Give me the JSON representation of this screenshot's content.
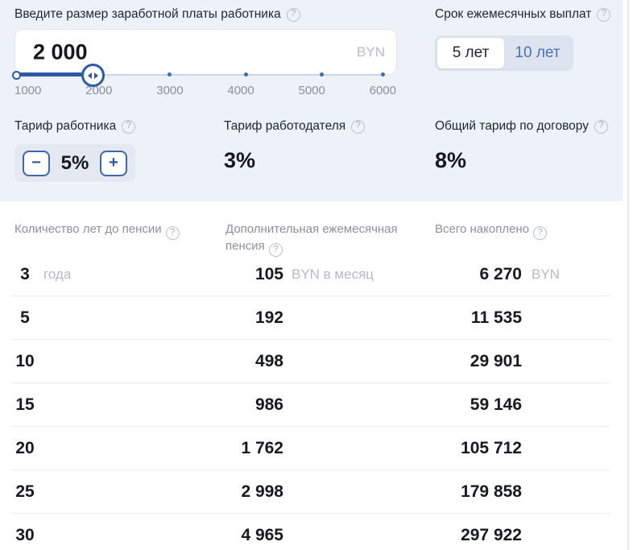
{
  "colors": {
    "accent_blue": "#2d59a8",
    "light_blue_text": "#4a70b8",
    "panel_bg": "#edf1f8",
    "muted_gray": "#8b919c",
    "unit_gray": "#b4bac4"
  },
  "icons": {
    "help": "?",
    "minus": "−",
    "plus": "+"
  },
  "salary_input": {
    "label": "Введите размер заработной платы работника",
    "value": "2 000",
    "currency_suffix": "BYN",
    "slider": {
      "ticks": [
        "1000",
        "2000",
        "3000",
        "4000",
        "5000",
        "6000"
      ],
      "current": "2000"
    }
  },
  "payout_term": {
    "label": "Срок ежемесячных выплат",
    "options": [
      {
        "label": "5 лет",
        "selected": true
      },
      {
        "label": "10 лет",
        "selected": false
      }
    ]
  },
  "tariffs": {
    "employee": {
      "label": "Тариф работника",
      "value": "5%"
    },
    "employer": {
      "label": "Тариф работодателя",
      "value": "3%"
    },
    "total": {
      "label": "Общий тариф по договору",
      "value": "8%"
    }
  },
  "results": {
    "headers": {
      "years": "Количество лет до пенсии",
      "pension": "Дополнительная ежемесячная пенсия",
      "total": "Всего накоплено"
    },
    "rows": [
      {
        "years": "3",
        "years_unit": "года",
        "pension": "105",
        "pension_unit": "BYN в месяц",
        "total": "6 270",
        "total_unit": "BYN"
      },
      {
        "years": "5",
        "years_unit": "",
        "pension": "192",
        "pension_unit": "",
        "total": "11 535",
        "total_unit": ""
      },
      {
        "years": "10",
        "years_unit": "",
        "pension": "498",
        "pension_unit": "",
        "total": "29 901",
        "total_unit": ""
      },
      {
        "years": "15",
        "years_unit": "",
        "pension": "986",
        "pension_unit": "",
        "total": "59 146",
        "total_unit": ""
      },
      {
        "years": "20",
        "years_unit": "",
        "pension": "1 762",
        "pension_unit": "",
        "total": "105 712",
        "total_unit": ""
      },
      {
        "years": "25",
        "years_unit": "",
        "pension": "2 998",
        "pension_unit": "",
        "total": "179 858",
        "total_unit": ""
      },
      {
        "years": "30",
        "years_unit": "",
        "pension": "4 965",
        "pension_unit": "",
        "total": "297 922",
        "total_unit": ""
      }
    ]
  }
}
